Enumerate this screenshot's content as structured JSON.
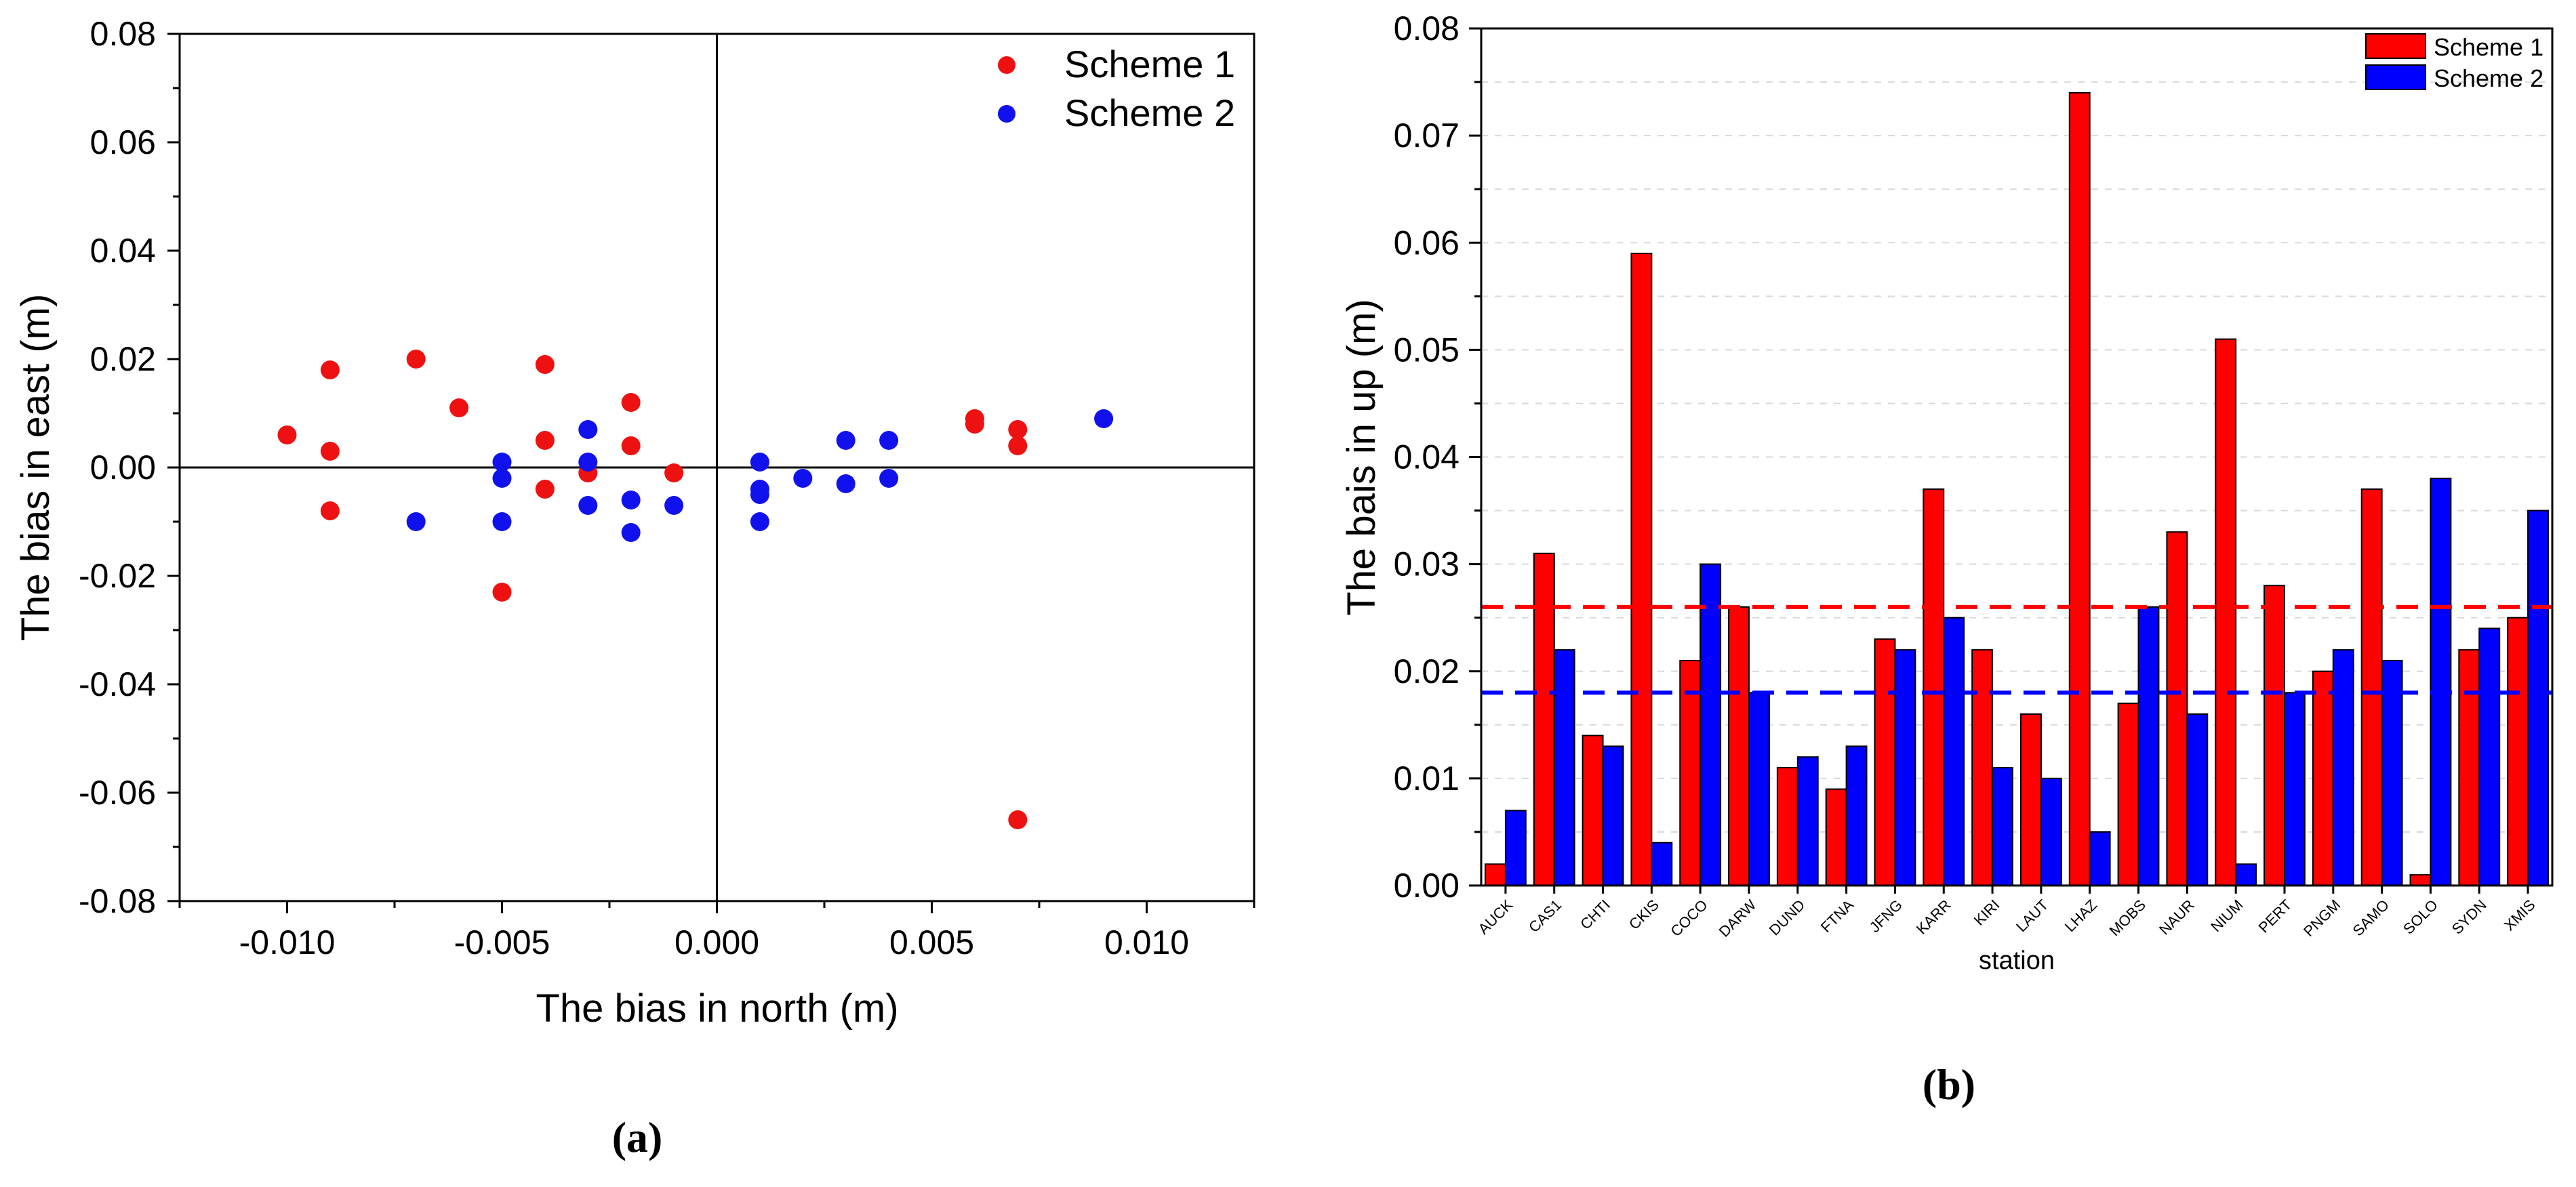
{
  "chart_data": [
    {
      "type": "scatter",
      "panel_label": "(a)",
      "xlabel": "The bias in north (m)",
      "ylabel": "The bias in east (m)",
      "xlim": [
        -0.0125,
        0.0125
      ],
      "ylim": [
        -0.08,
        0.08
      ],
      "xticks": [
        "-0.010",
        "-0.005",
        "0.000",
        "0.005",
        "0.010"
      ],
      "xtick_values": [
        -0.01,
        -0.005,
        0.0,
        0.005,
        0.01
      ],
      "yticks": [
        "-0.08",
        "-0.06",
        "-0.04",
        "-0.02",
        "0.00",
        "0.02",
        "0.04",
        "0.06",
        "0.08"
      ],
      "ytick_values": [
        -0.08,
        -0.06,
        -0.04,
        -0.02,
        0.0,
        0.02,
        0.04,
        0.06,
        0.08
      ],
      "legend_position": "top-right",
      "series": [
        {
          "name": "Scheme 1",
          "color": "#ee1111",
          "points": [
            [
              -0.01,
              0.006
            ],
            [
              -0.009,
              0.018
            ],
            [
              -0.009,
              0.003
            ],
            [
              -0.009,
              -0.008
            ],
            [
              -0.007,
              0.02
            ],
            [
              -0.006,
              0.011
            ],
            [
              -0.005,
              -0.023
            ],
            [
              -0.004,
              0.019
            ],
            [
              -0.004,
              0.005
            ],
            [
              -0.004,
              -0.004
            ],
            [
              -0.003,
              -0.001
            ],
            [
              -0.002,
              0.012
            ],
            [
              -0.002,
              0.004
            ],
            [
              -0.001,
              -0.001
            ],
            [
              0.006,
              0.009
            ],
            [
              0.006,
              0.008
            ],
            [
              0.007,
              0.007
            ],
            [
              0.007,
              0.004
            ],
            [
              0.007,
              -0.065
            ]
          ]
        },
        {
          "name": "Scheme 2",
          "color": "#1111ee",
          "points": [
            [
              -0.007,
              -0.01
            ],
            [
              -0.005,
              0.001
            ],
            [
              -0.005,
              -0.002
            ],
            [
              -0.005,
              -0.01
            ],
            [
              -0.003,
              0.007
            ],
            [
              -0.003,
              0.001
            ],
            [
              -0.003,
              -0.007
            ],
            [
              -0.002,
              -0.006
            ],
            [
              -0.002,
              -0.012
            ],
            [
              -0.001,
              -0.007
            ],
            [
              0.001,
              0.001
            ],
            [
              0.001,
              -0.004
            ],
            [
              0.001,
              -0.005
            ],
            [
              0.001,
              -0.01
            ],
            [
              0.002,
              -0.002
            ],
            [
              0.003,
              0.005
            ],
            [
              0.003,
              -0.003
            ],
            [
              0.004,
              0.005
            ],
            [
              0.004,
              -0.002
            ],
            [
              0.009,
              0.009
            ]
          ]
        }
      ]
    },
    {
      "type": "bar",
      "panel_label": "(b)",
      "xlabel": "station",
      "ylabel": "The bais in up (m)",
      "ylim": [
        0,
        0.08
      ],
      "yticks": [
        "0.00",
        "0.01",
        "0.02",
        "0.03",
        "0.04",
        "0.05",
        "0.06",
        "0.07",
        "0.08"
      ],
      "ytick_values": [
        0,
        0.01,
        0.02,
        0.03,
        0.04,
        0.05,
        0.06,
        0.07,
        0.08
      ],
      "legend_position": "top-right",
      "categories": [
        "AUCK",
        "CAS1",
        "CHTI",
        "CKIS",
        "COCO",
        "DARW",
        "DUND",
        "FTNA",
        "JFNG",
        "KARR",
        "KIRI",
        "LAUT",
        "LHAZ",
        "MOBS",
        "NAUR",
        "NIUM",
        "PERT",
        "PNGM",
        "SAMO",
        "SOLO",
        "SYDN",
        "XMIS"
      ],
      "series": [
        {
          "name": "Scheme 1",
          "color": "#ff0000",
          "values": [
            0.002,
            0.031,
            0.014,
            0.059,
            0.021,
            0.026,
            0.011,
            0.009,
            0.023,
            0.037,
            0.022,
            0.016,
            0.074,
            0.017,
            0.033,
            0.051,
            0.028,
            0.02,
            0.037,
            0.001,
            0.022,
            0.025
          ],
          "mean_line": 0.026
        },
        {
          "name": "Scheme 2",
          "color": "#0000ff",
          "values": [
            0.007,
            0.022,
            0.013,
            0.004,
            0.03,
            0.018,
            0.012,
            0.013,
            0.022,
            0.025,
            0.011,
            0.01,
            0.005,
            0.026,
            0.016,
            0.002,
            0.018,
            0.022,
            0.021,
            0.038,
            0.024,
            0.035
          ],
          "mean_line": 0.018
        }
      ]
    }
  ]
}
